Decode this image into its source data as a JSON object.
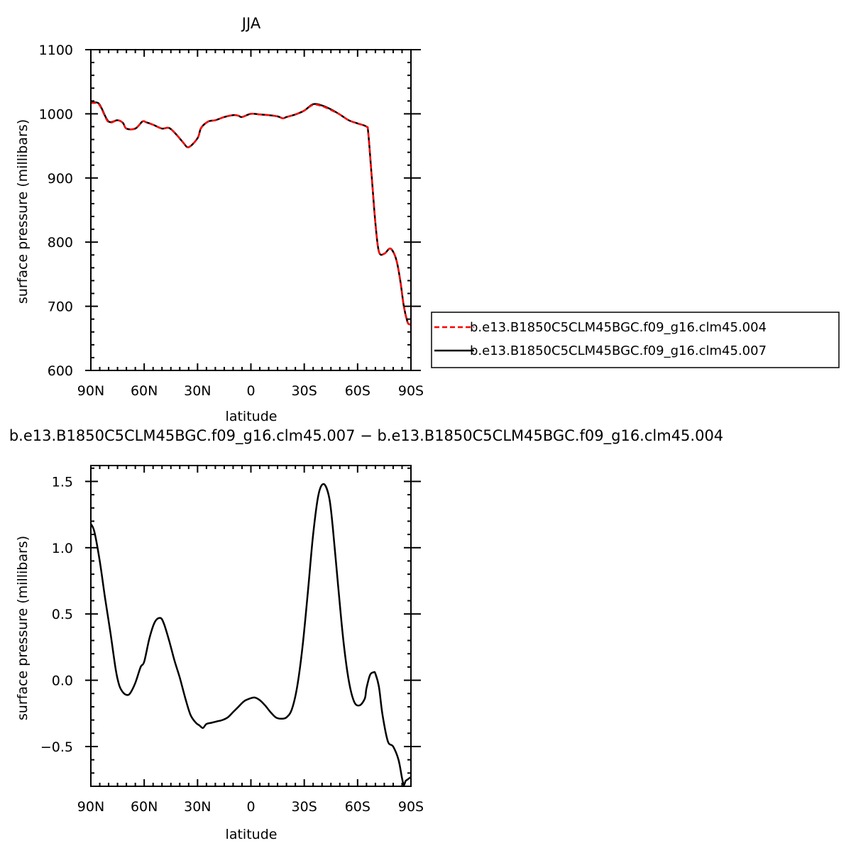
{
  "chart_data": [
    {
      "type": "line",
      "title": "JJA",
      "xlabel": "latitude",
      "ylabel": "surface pressure (millibars)",
      "xlim": [
        90,
        -90
      ],
      "ylim": [
        600,
        1100
      ],
      "xticks": [
        {
          "value": 90,
          "label": "90N"
        },
        {
          "value": 60,
          "label": "60N"
        },
        {
          "value": 30,
          "label": "30N"
        },
        {
          "value": 0,
          "label": "0"
        },
        {
          "value": -30,
          "label": "30S"
        },
        {
          "value": -60,
          "label": "60S"
        },
        {
          "value": -90,
          "label": "90S"
        }
      ],
      "yticks": [
        {
          "value": 600,
          "label": "600"
        },
        {
          "value": 700,
          "label": "700"
        },
        {
          "value": 800,
          "label": "800"
        },
        {
          "value": 900,
          "label": "900"
        },
        {
          "value": 1000,
          "label": "1000"
        },
        {
          "value": 1100,
          "label": "1100"
        }
      ],
      "legend": {
        "position": "right",
        "entries": [
          "b.e13.B1850C5CLM45BGC.f09_g16.clm45.004",
          "b.e13.B1850C5CLM45BGC.f09_g16.clm45.007"
        ]
      },
      "x": [
        90,
        86,
        84,
        80,
        75,
        72,
        70,
        65,
        61,
        59,
        55,
        50,
        46,
        42,
        38,
        35,
        30,
        28,
        24,
        20,
        15,
        10,
        7,
        5,
        0,
        -5,
        -10,
        -15,
        -18,
        -20,
        -25,
        -30,
        -35,
        -40,
        -45,
        -50,
        -55,
        -60,
        -65,
        -66,
        -68,
        -70,
        -72,
        -75,
        -78,
        -80,
        -82,
        -84,
        -86,
        -88,
        -89,
        -90
      ],
      "series": [
        {
          "name": "b.e13.B1850C5CLM45BGC.f09_g16.clm45.004",
          "color": "#ff0000",
          "dash": "dashed",
          "values": [
            1017,
            1016,
            1008,
            987,
            990,
            986,
            977,
            977,
            988,
            987,
            983,
            977,
            978,
            968,
            955,
            948,
            962,
            978,
            988,
            990,
            995,
            998,
            997,
            995,
            1000,
            999,
            998,
            996,
            993,
            995,
            999,
            1005,
            1014,
            1012,
            1006,
            999,
            990,
            985,
            980,
            970,
            900,
            830,
            785,
            782,
            790,
            785,
            770,
            740,
            700,
            676,
            672,
            672
          ]
        },
        {
          "name": "b.e13.B1850C5CLM45BGC.f09_g16.clm45.007",
          "color": "#000000",
          "dash": "solid",
          "values": [
            1018,
            1017,
            1009,
            988,
            990,
            986,
            977,
            977,
            988,
            987,
            983,
            977,
            978,
            968,
            955,
            948,
            962,
            978,
            988,
            990,
            995,
            998,
            997,
            995,
            1000,
            999,
            998,
            996,
            993,
            995,
            999,
            1005,
            1015,
            1013,
            1007,
            999,
            990,
            985,
            980,
            970,
            900,
            830,
            785,
            782,
            790,
            785,
            770,
            740,
            700,
            676,
            672,
            672
          ]
        }
      ]
    },
    {
      "type": "line",
      "title": "b.e13.B1850C5CLM45BGC.f09_g16.clm45.007 − b.e13.B1850C5CLM45BGC.f09_g16.clm45.004",
      "xlabel": "latitude",
      "ylabel": "surface pressure (millibars)",
      "xlim": [
        90,
        -90
      ],
      "ylim": [
        -0.8,
        1.62
      ],
      "xticks": [
        {
          "value": 90,
          "label": "90N"
        },
        {
          "value": 60,
          "label": "60N"
        },
        {
          "value": 30,
          "label": "30N"
        },
        {
          "value": 0,
          "label": "0"
        },
        {
          "value": -30,
          "label": "30S"
        },
        {
          "value": -60,
          "label": "60S"
        },
        {
          "value": -90,
          "label": "90S"
        }
      ],
      "yticks": [
        {
          "value": -0.5,
          "label": "−0.5"
        },
        {
          "value": 0.0,
          "label": "0.0"
        },
        {
          "value": 0.5,
          "label": "0.5"
        },
        {
          "value": 1.0,
          "label": "1.0"
        },
        {
          "value": 1.5,
          "label": "1.5"
        }
      ],
      "x": [
        90,
        88,
        85,
        82,
        79,
        76,
        74,
        72,
        70,
        68,
        65,
        62,
        60,
        57,
        54,
        51,
        49,
        46,
        43,
        40,
        37,
        34,
        31,
        29,
        27,
        25,
        22,
        19,
        16,
        13,
        10,
        7,
        4,
        1,
        -2,
        -5,
        -8,
        -11,
        -14,
        -17,
        -20,
        -23,
        -26,
        -29,
        -32,
        -35,
        -38,
        -41,
        -44,
        -46,
        -49,
        -52,
        -55,
        -58,
        -61,
        -64,
        -65,
        -67,
        -69,
        -70,
        -72,
        -74,
        -77,
        -80,
        -83,
        -85,
        -86,
        -87,
        -88,
        -90
      ],
      "series": [
        {
          "name": "",
          "color": "#000000",
          "dash": "solid",
          "values": [
            1.18,
            1.12,
            0.9,
            0.62,
            0.36,
            0.08,
            -0.04,
            -0.09,
            -0.11,
            -0.1,
            -0.02,
            0.1,
            0.14,
            0.32,
            0.44,
            0.47,
            0.43,
            0.3,
            0.15,
            0.02,
            -0.13,
            -0.26,
            -0.32,
            -0.34,
            -0.36,
            -0.33,
            -0.32,
            -0.31,
            -0.3,
            -0.28,
            -0.24,
            -0.2,
            -0.16,
            -0.14,
            -0.13,
            -0.15,
            -0.19,
            -0.24,
            -0.28,
            -0.29,
            -0.28,
            -0.22,
            -0.05,
            0.25,
            0.66,
            1.1,
            1.4,
            1.48,
            1.38,
            1.16,
            0.72,
            0.3,
            0.0,
            -0.16,
            -0.19,
            -0.14,
            -0.06,
            0.04,
            0.06,
            0.05,
            -0.05,
            -0.26,
            -0.46,
            -0.5,
            -0.6,
            -0.74,
            -0.79,
            -0.76,
            -0.75,
            -0.73
          ]
        }
      ]
    }
  ]
}
